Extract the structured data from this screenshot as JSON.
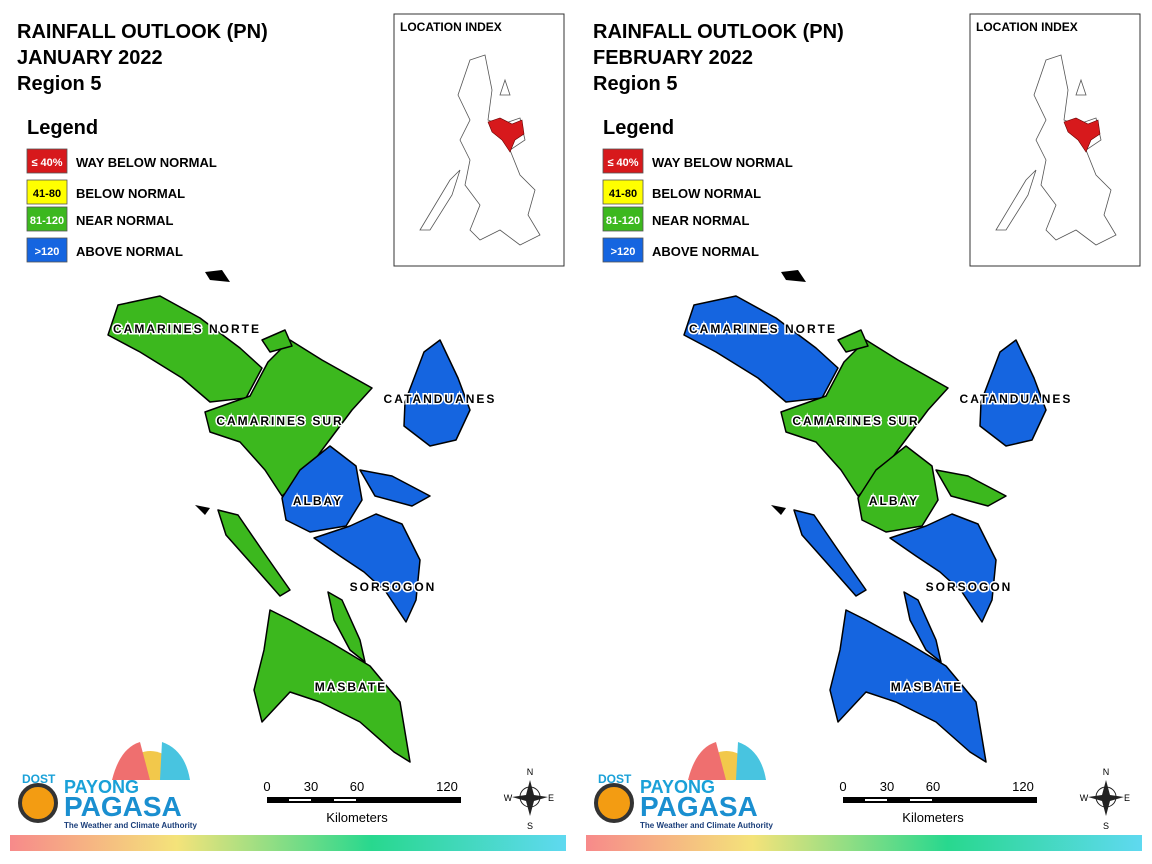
{
  "panels": [
    {
      "title": [
        "RAINFALL OUTLOOK (PN)",
        "JANUARY 2022",
        "Region 5"
      ],
      "legend": {
        "title": "Legend",
        "items": [
          {
            "code": "≤ 40%",
            "label": "WAY BELOW NORMAL",
            "color": "#d7191c"
          },
          {
            "code": "41-80",
            "label": "BELOW NORMAL",
            "color": "#ffff00"
          },
          {
            "code": "81-120",
            "label": "NEAR NORMAL",
            "color": "#3cb81e"
          },
          {
            "code": ">120",
            "label": "ABOVE NORMAL",
            "color": "#1565e0"
          }
        ]
      },
      "location_index": "LOCATION INDEX",
      "provinces": [
        {
          "name": "CAMARINES NORTE",
          "color": "#3cb81e"
        },
        {
          "name": "CAMARINES SUR",
          "color": "#3cb81e"
        },
        {
          "name": "CATANDUANES",
          "color": "#1565e0"
        },
        {
          "name": "ALBAY",
          "color": "#1565e0"
        },
        {
          "name": "SORSOGON",
          "color": "#1565e0"
        },
        {
          "name": "MASBATE",
          "color": "#3cb81e"
        }
      ],
      "scale": {
        "ticks": [
          "0",
          "30",
          "60",
          "120"
        ],
        "unit": "Kilometers"
      },
      "compass": [
        "N",
        "E",
        "S",
        "W"
      ],
      "logo": {
        "dost": "DOST",
        "payong": "PAYONG",
        "pagasa": "PAGASA",
        "tagline": "The Weather and Climate Authority"
      }
    },
    {
      "title": [
        "RAINFALL OUTLOOK (PN)",
        "FEBRUARY 2022",
        "Region 5"
      ],
      "legend": {
        "title": "Legend",
        "items": [
          {
            "code": "≤ 40%",
            "label": "WAY BELOW NORMAL",
            "color": "#d7191c"
          },
          {
            "code": "41-80",
            "label": "BELOW NORMAL",
            "color": "#ffff00"
          },
          {
            "code": "81-120",
            "label": "NEAR NORMAL",
            "color": "#3cb81e"
          },
          {
            "code": ">120",
            "label": "ABOVE NORMAL",
            "color": "#1565e0"
          }
        ]
      },
      "location_index": "LOCATION INDEX",
      "provinces": [
        {
          "name": "CAMARINES NORTE",
          "color": "#1565e0"
        },
        {
          "name": "CAMARINES SUR",
          "color": "#3cb81e"
        },
        {
          "name": "CATANDUANES",
          "color": "#1565e0"
        },
        {
          "name": "ALBAY",
          "color": "#3cb81e"
        },
        {
          "name": "SORSOGON",
          "color": "#1565e0"
        },
        {
          "name": "MASBATE",
          "color": "#1565e0"
        }
      ],
      "scale": {
        "ticks": [
          "0",
          "30",
          "60",
          "120"
        ],
        "unit": "Kilometers"
      },
      "compass": [
        "N",
        "E",
        "S",
        "W"
      ],
      "logo": {
        "dost": "DOST",
        "payong": "PAYONG",
        "pagasa": "PAGASA",
        "tagline": "The Weather and Climate Authority"
      }
    }
  ]
}
